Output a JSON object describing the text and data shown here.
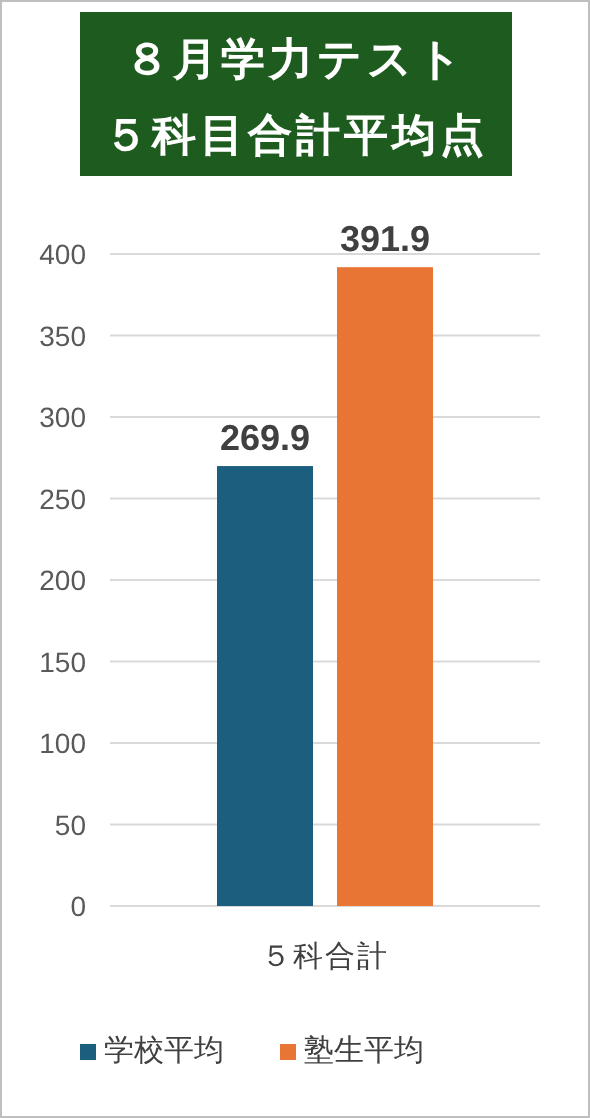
{
  "chart_data": {
    "type": "bar",
    "title": "８月学力テスト",
    "subtitle": "５科目合計平均点",
    "categories": [
      "５科合計"
    ],
    "series": [
      {
        "name": "学校平均",
        "color": "#1b5e7e",
        "values": [
          269.9
        ]
      },
      {
        "name": "塾生平均",
        "color": "#e97534",
        "values": [
          391.9
        ]
      }
    ],
    "ylim": [
      0,
      400
    ],
    "yticks": [
      0,
      50,
      100,
      150,
      200,
      250,
      300,
      350,
      400
    ],
    "grid": "y",
    "data_labels": true,
    "legend": "bottom"
  }
}
